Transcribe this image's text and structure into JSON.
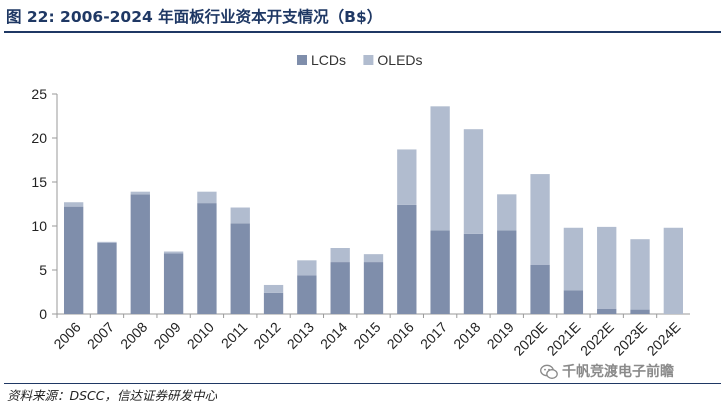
{
  "figure": {
    "title": "图 22:  2006-2024 年面板行业资本开支情况（B$）",
    "source": "资料来源：DSCC，信达证券研发中心",
    "watermark": "千帆竞渡电子前瞻"
  },
  "colors": {
    "lcd": "#7f8eab",
    "oled": "#b1bccf",
    "title": "#1f3864",
    "axis": "#9a9a9a"
  },
  "chart_data": {
    "type": "bar",
    "stacked": true,
    "title": "2006-2024 年面板行业资本开支情况（B$）",
    "categories": [
      "2006",
      "2007",
      "2008",
      "2009",
      "2010",
      "2011",
      "2012",
      "2013",
      "2014",
      "2015",
      "2016",
      "2017",
      "2018",
      "2019",
      "2020E",
      "2021E",
      "2022E",
      "2023E",
      "2024E"
    ],
    "series": [
      {
        "name": "LCDs",
        "color": "#7f8eab",
        "values": [
          12.2,
          8.1,
          13.6,
          6.9,
          12.6,
          10.3,
          2.4,
          4.4,
          5.9,
          5.9,
          12.4,
          9.5,
          9.1,
          9.5,
          5.6,
          2.7,
          0.6,
          0.5,
          0.0
        ]
      },
      {
        "name": "OLEDs",
        "color": "#b1bccf",
        "values": [
          0.5,
          0.1,
          0.3,
          0.2,
          1.3,
          1.8,
          0.9,
          1.7,
          1.6,
          0.9,
          6.3,
          14.1,
          11.9,
          4.1,
          10.3,
          7.1,
          9.3,
          8.0,
          9.8
        ]
      }
    ],
    "ylim": [
      0,
      25
    ],
    "yticks": [
      0,
      5,
      10,
      15,
      20,
      25
    ],
    "xlabel": "",
    "ylabel": "",
    "legend": {
      "position": "top-center",
      "entries": [
        "LCDs",
        "OLEDs"
      ]
    }
  }
}
